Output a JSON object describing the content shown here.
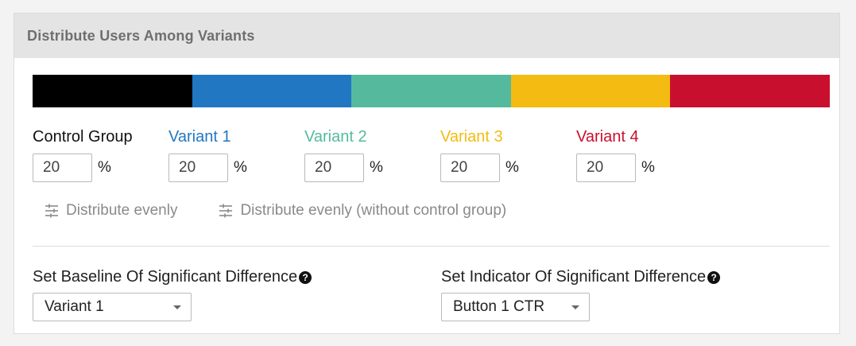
{
  "panel": {
    "title": "Distribute Users Among Variants"
  },
  "distribution_bar": {
    "segments": [
      {
        "name": "Control Group",
        "color": "#000000",
        "percent": 20
      },
      {
        "name": "Variant 1",
        "color": "#2277c2",
        "percent": 20
      },
      {
        "name": "Variant 2",
        "color": "#55ba9d",
        "percent": 20
      },
      {
        "name": "Variant 3",
        "color": "#f4bb12",
        "percent": 20
      },
      {
        "name": "Variant 4",
        "color": "#c8102e",
        "percent": 20
      }
    ]
  },
  "variants": [
    {
      "label": "Control Group",
      "label_color": "#111111",
      "value": "20",
      "unit": "%"
    },
    {
      "label": "Variant 1",
      "label_color": "#2277c2",
      "value": "20",
      "unit": "%"
    },
    {
      "label": "Variant 2",
      "label_color": "#55ba9d",
      "value": "20",
      "unit": "%"
    },
    {
      "label": "Variant 3",
      "label_color": "#f4bb12",
      "value": "20",
      "unit": "%"
    },
    {
      "label": "Variant 4",
      "label_color": "#c8102e",
      "value": "20",
      "unit": "%"
    }
  ],
  "actions": {
    "distribute_evenly": {
      "label": "Distribute evenly",
      "icon": "sliders-icon"
    },
    "distribute_evenly_no_control": {
      "label": "Distribute evenly (without control group)",
      "icon": "sliders-icon"
    }
  },
  "baseline": {
    "label": "Set Baseline Of Significant Difference",
    "help_icon": "question-circle-icon",
    "selected": "Variant 1"
  },
  "indicator": {
    "label": "Set Indicator Of Significant Difference",
    "help_icon": "question-circle-icon",
    "selected": "Button 1 CTR"
  }
}
